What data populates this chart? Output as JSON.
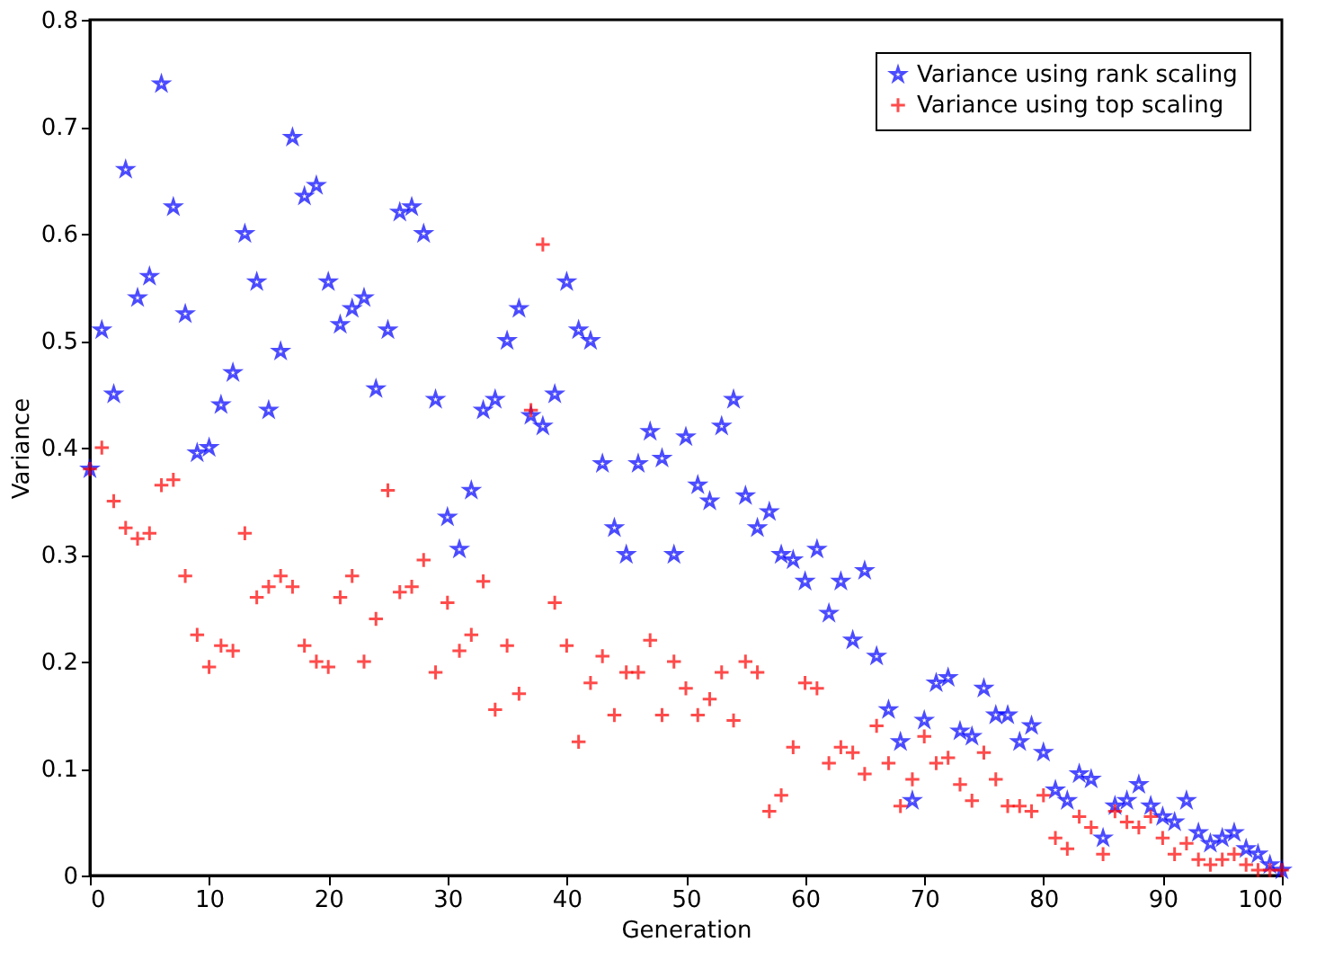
{
  "chart_data": {
    "type": "scatter",
    "xlabel": "Generation",
    "ylabel": "Variance",
    "x": [
      0,
      1,
      2,
      3,
      4,
      5,
      6,
      7,
      8,
      9,
      10,
      11,
      12,
      13,
      14,
      15,
      16,
      17,
      18,
      19,
      20,
      21,
      22,
      23,
      24,
      25,
      26,
      27,
      28,
      29,
      30,
      31,
      32,
      33,
      34,
      35,
      36,
      37,
      38,
      39,
      40,
      41,
      42,
      43,
      44,
      45,
      46,
      47,
      48,
      49,
      50,
      51,
      52,
      53,
      54,
      55,
      56,
      57,
      58,
      59,
      60,
      61,
      62,
      63,
      64,
      65,
      66,
      67,
      68,
      69,
      70,
      71,
      72,
      73,
      74,
      75,
      76,
      77,
      78,
      79,
      80,
      81,
      82,
      83,
      84,
      85,
      86,
      87,
      88,
      89,
      90,
      91,
      92,
      93,
      94,
      95,
      96,
      97,
      98,
      99,
      100
    ],
    "series": [
      {
        "name": "Variance using rank scaling",
        "color": "#0000ff",
        "marker": "star",
        "values": [
          0.38,
          0.51,
          0.45,
          0.66,
          0.54,
          0.56,
          0.74,
          0.625,
          0.525,
          0.395,
          0.4,
          0.44,
          0.47,
          0.6,
          0.555,
          0.435,
          0.49,
          0.69,
          0.635,
          0.645,
          0.555,
          0.515,
          0.53,
          0.54,
          0.455,
          0.51,
          0.62,
          0.625,
          0.6,
          0.445,
          0.335,
          0.305,
          0.36,
          0.435,
          0.445,
          0.5,
          0.53,
          0.43,
          0.42,
          0.45,
          0.555,
          0.51,
          0.5,
          0.385,
          0.325,
          0.3,
          0.385,
          0.415,
          0.39,
          0.3,
          0.41,
          0.365,
          0.35,
          0.42,
          0.445,
          0.355,
          0.325,
          0.34,
          0.3,
          0.295,
          0.275,
          0.305,
          0.245,
          0.275,
          0.22,
          0.285,
          0.205,
          0.155,
          0.125,
          0.07,
          0.145,
          0.18,
          0.185,
          0.135,
          0.13,
          0.175,
          0.15,
          0.15,
          0.125,
          0.14,
          0.115,
          0.08,
          0.07,
          0.095,
          0.09,
          0.035,
          0.065,
          0.07,
          0.085,
          0.065,
          0.055,
          0.05,
          0.07,
          0.04,
          0.03,
          0.035,
          0.04,
          0.025,
          0.02,
          0.01,
          0.005
        ]
      },
      {
        "name": "Variance using top scaling",
        "color": "#ff0000",
        "marker": "cross",
        "values": [
          0.38,
          0.4,
          0.35,
          0.325,
          0.315,
          0.32,
          0.365,
          0.37,
          0.28,
          0.225,
          0.195,
          0.215,
          0.21,
          0.32,
          0.26,
          0.27,
          0.28,
          0.27,
          0.215,
          0.2,
          0.195,
          0.26,
          0.28,
          0.2,
          0.24,
          0.36,
          0.265,
          0.27,
          0.295,
          0.19,
          0.255,
          0.21,
          0.225,
          0.275,
          0.155,
          0.215,
          0.17,
          0.435,
          0.59,
          0.255,
          0.215,
          0.125,
          0.18,
          0.205,
          0.15,
          0.19,
          0.19,
          0.22,
          0.15,
          0.2,
          0.175,
          0.15,
          0.165,
          0.19,
          0.145,
          0.2,
          0.19,
          0.06,
          0.075,
          0.12,
          0.18,
          0.175,
          0.105,
          0.12,
          0.115,
          0.095,
          0.14,
          0.105,
          0.065,
          0.09,
          0.13,
          0.105,
          0.11,
          0.085,
          0.07,
          0.115,
          0.09,
          0.065,
          0.065,
          0.06,
          0.075,
          0.035,
          0.025,
          0.055,
          0.045,
          0.02,
          0.06,
          0.05,
          0.045,
          0.055,
          0.035,
          0.02,
          0.03,
          0.015,
          0.01,
          0.015,
          0.02,
          0.01,
          0.005,
          0.005,
          0.005
        ]
      }
    ],
    "xlim": [
      0,
      100
    ],
    "xticks": [
      0,
      10,
      20,
      30,
      40,
      50,
      60,
      70,
      80,
      90,
      100
    ],
    "ylim": [
      0,
      0.8
    ],
    "yticks": [
      0,
      0.1,
      0.2,
      0.3,
      0.4,
      0.5,
      0.6,
      0.7,
      0.8
    ],
    "grid": false,
    "legend": "top right"
  }
}
